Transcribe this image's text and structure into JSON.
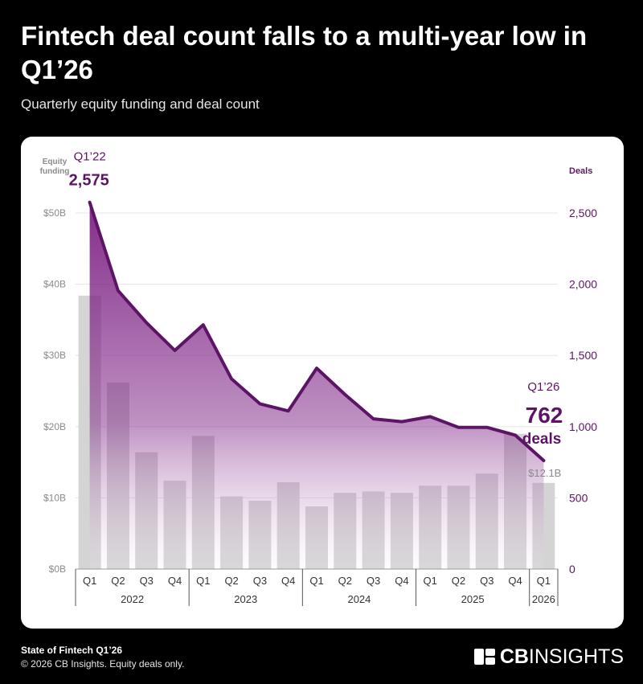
{
  "header": {
    "title": "Fintech deal count falls to a multi-year low in Q1’26",
    "subtitle": "Quarterly equity funding and deal count"
  },
  "footer": {
    "title": "State of Fintech Q1’26",
    "note": "© 2026 CB Insights. Equity deals only.",
    "logo_bold": "CB",
    "logo_thin": "INSIGHTS"
  },
  "colors": {
    "bar": "#d4d4d4",
    "line": "#5d1466",
    "area_top": "#7d2184",
    "area_bottom": "#f3e6f3",
    "axis_text": "#8a8a8a",
    "gridline": "#e5e5e5"
  },
  "chart_data": {
    "type": "bar+line",
    "left_axis_label": "Equity funding",
    "right_axis_label": "Deals",
    "left_ylim": [
      0,
      50
    ],
    "right_ylim": [
      0,
      2500
    ],
    "left_ticks": [
      "$0B",
      "$10B",
      "$20B",
      "$30B",
      "$40B",
      "$50B"
    ],
    "right_ticks": [
      "0",
      "500",
      "1,000",
      "1,500",
      "2,000",
      "2,500"
    ],
    "quarter_labels": [
      "Q1",
      "Q2",
      "Q3",
      "Q4",
      "Q1",
      "Q2",
      "Q3",
      "Q4",
      "Q1",
      "Q2",
      "Q3",
      "Q4",
      "Q1",
      "Q2",
      "Q3",
      "Q4",
      "Q1"
    ],
    "years": [
      {
        "label": "2022",
        "count": 4
      },
      {
        "label": "2023",
        "count": 4
      },
      {
        "label": "2024",
        "count": 4
      },
      {
        "label": "2025",
        "count": 4
      },
      {
        "label": "2026",
        "count": 1
      }
    ],
    "series": [
      {
        "name": "Equity funding ($B)",
        "kind": "bar",
        "values": [
          38.4,
          26.2,
          16.4,
          12.4,
          18.7,
          10.2,
          9.6,
          12.2,
          8.8,
          10.7,
          10.9,
          10.7,
          11.7,
          11.7,
          13.4,
          19.0,
          12.1
        ]
      },
      {
        "name": "Deals",
        "kind": "line",
        "values": [
          2575,
          1955,
          1730,
          1535,
          1715,
          1335,
          1160,
          1110,
          1410,
          1225,
          1055,
          1035,
          1070,
          995,
          995,
          940,
          762
        ]
      }
    ],
    "annotations": {
      "first_period": "Q1’22",
      "first_value": "2,575",
      "last_period": "Q1’26",
      "last_value": "762",
      "last_unit": "deals",
      "last_funding": "$12.1B"
    }
  }
}
